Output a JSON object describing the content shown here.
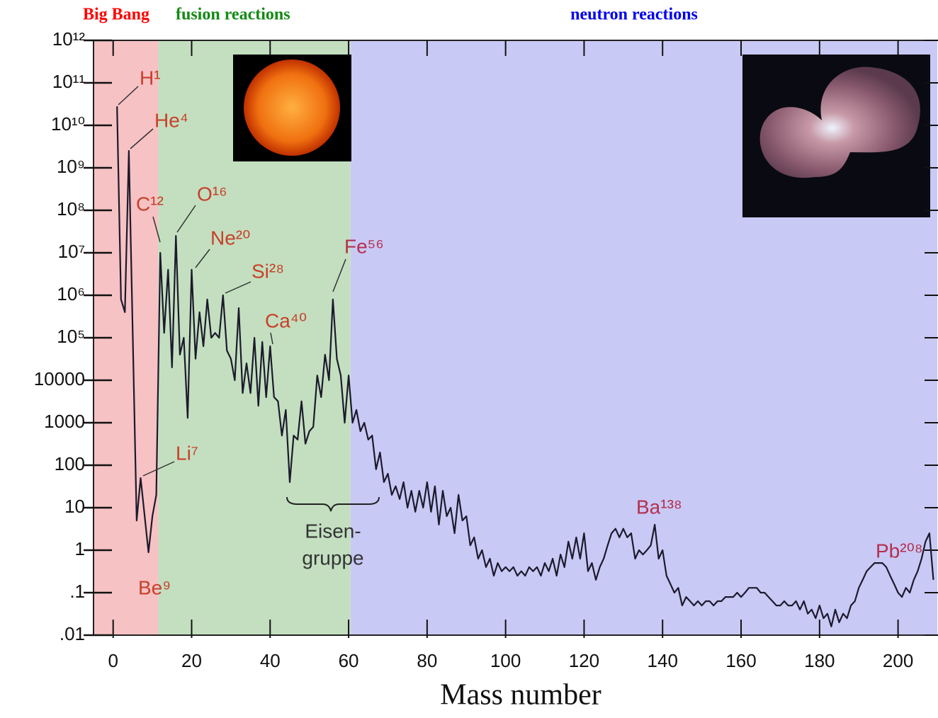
{
  "chart_data": {
    "type": "line",
    "x_label": "Mass number",
    "log_y": true,
    "xlim": [
      -5,
      210
    ],
    "ylim": [
      0.01,
      1000000000000
    ],
    "xticks": [
      0,
      20,
      40,
      60,
      80,
      100,
      120,
      140,
      160,
      180,
      200
    ],
    "yticks": [
      {
        "value": 1000000000000,
        "label": "10¹²"
      },
      {
        "value": 100000000000,
        "label": "10¹¹"
      },
      {
        "value": 10000000000,
        "label": "10¹⁰"
      },
      {
        "value": 1000000000,
        "label": "10⁹"
      },
      {
        "value": 100000000,
        "label": "10⁸"
      },
      {
        "value": 10000000,
        "label": "10⁷"
      },
      {
        "value": 1000000,
        "label": "10⁶"
      },
      {
        "value": 100000,
        "label": "10⁵"
      },
      10000,
      1000,
      100,
      10,
      1,
      {
        "value": 0.1,
        "label": ".1"
      },
      {
        "value": 0.01,
        "label": ".01"
      }
    ],
    "regions": [
      {
        "label": "Big Bang",
        "label_color": "#ff0000",
        "fill": "#f6c2c4",
        "range": [
          -5,
          11.5
        ]
      },
      {
        "label": "fusion reactions",
        "label_color": "#138a13",
        "fill": "#c3dfc0",
        "range": [
          11.5,
          60.5
        ]
      },
      {
        "label": "neutron reactions",
        "label_color": "#0000ee",
        "fill": "#c9c9f6",
        "range": [
          60.5,
          210
        ]
      }
    ],
    "annotations": [
      "H¹",
      "He⁴",
      "C¹²",
      "O¹⁶",
      "Ne²⁰",
      "Si²⁸",
      "Ca⁴⁰",
      "Fe⁵⁶",
      "Li⁷",
      "Be⁹",
      "Ba¹³⁸",
      "Pb²⁰⁸"
    ],
    "bracket_label": [
      "Eisen-",
      "gruppe"
    ],
    "color": "#1c1a2c",
    "x": [
      1,
      2,
      3,
      4,
      6,
      7,
      9,
      10,
      11,
      12,
      13,
      14,
      15,
      16,
      17,
      18,
      19,
      20,
      21,
      22,
      23,
      24,
      25,
      26,
      27,
      28,
      29,
      30,
      31,
      32,
      33,
      34,
      35,
      36,
      37,
      38,
      39,
      40,
      41,
      42,
      43,
      44,
      45,
      46,
      47,
      48,
      49,
      50,
      51,
      52,
      53,
      54,
      55,
      56,
      57,
      58,
      59,
      60,
      61,
      62,
      63,
      64,
      65,
      66,
      67,
      68,
      69,
      70,
      71,
      72,
      73,
      74,
      75,
      76,
      77,
      78,
      79,
      80,
      81,
      82,
      83,
      84,
      85,
      86,
      87,
      88,
      89,
      90,
      91,
      92,
      93,
      94,
      95,
      96,
      97,
      98,
      99,
      100,
      101,
      102,
      103,
      104,
      105,
      106,
      107,
      108,
      109,
      110,
      111,
      112,
      113,
      114,
      115,
      116,
      117,
      118,
      119,
      120,
      121,
      122,
      123,
      124,
      125,
      126,
      127,
      128,
      129,
      130,
      131,
      132,
      133,
      134,
      135,
      136,
      137,
      138,
      139,
      140,
      141,
      142,
      143,
      144,
      145,
      146,
      147,
      148,
      149,
      150,
      151,
      152,
      153,
      154,
      155,
      156,
      157,
      158,
      159,
      160,
      161,
      162,
      163,
      164,
      165,
      166,
      167,
      168,
      169,
      170,
      171,
      172,
      173,
      174,
      175,
      176,
      177,
      178,
      179,
      180,
      181,
      182,
      183,
      184,
      185,
      186,
      187,
      188,
      189,
      190,
      191,
      192,
      193,
      194,
      195,
      196,
      197,
      198,
      199,
      200,
      201,
      202,
      203,
      204,
      205,
      206,
      207,
      208,
      209
    ],
    "values": [
      28000000000,
      800000,
      400000,
      2500000000,
      5,
      50,
      0.89,
      6.3,
      20,
      10000000,
      130000,
      4000000,
      20000,
      25000000,
      40000,
      100000,
      1300,
      4000000,
      32000,
      400000,
      63000,
      800000,
      100000,
      130000,
      100000,
      1000000,
      50000,
      32000,
      10000,
      500000,
      5000,
      25000,
      5000,
      100000,
      2500,
      80000,
      4000,
      63000,
      4000,
      3200,
      500,
      2000,
      40,
      500,
      400,
      3200,
      320,
      630,
      800,
      13000,
      4000,
      40000,
      10000,
      800000,
      32000,
      13000,
      1000,
      13000,
      1000,
      2000,
      630,
      1000,
      400,
      500,
      80,
      200,
      40,
      63,
      20,
      32,
      16,
      40,
      10,
      25,
      8,
      25,
      10,
      40,
      8,
      32,
      4,
      25,
      6.3,
      10,
      2.5,
      20,
      5,
      6.3,
      1.3,
      2,
      0.63,
      1,
      0.4,
      0.63,
      0.25,
      0.5,
      0.32,
      0.4,
      0.32,
      0.4,
      0.25,
      0.32,
      0.25,
      0.4,
      0.32,
      0.4,
      0.25,
      0.5,
      0.32,
      0.63,
      0.25,
      0.79,
      0.4,
      1.6,
      0.63,
      2,
      0.63,
      2.5,
      0.32,
      0.5,
      0.2,
      0.4,
      0.63,
      1.3,
      2.5,
      3.2,
      2,
      3.2,
      2,
      2.5,
      0.63,
      1,
      0.79,
      1,
      1.3,
      4,
      0.63,
      1,
      0.25,
      0.16,
      0.1,
      0.13,
      0.05,
      0.079,
      0.063,
      0.05,
      0.063,
      0.05,
      0.063,
      0.063,
      0.05,
      0.063,
      0.063,
      0.079,
      0.079,
      0.079,
      0.1,
      0.079,
      0.1,
      0.13,
      0.13,
      0.13,
      0.1,
      0.1,
      0.079,
      0.063,
      0.05,
      0.05,
      0.063,
      0.05,
      0.05,
      0.063,
      0.04,
      0.063,
      0.032,
      0.04,
      0.025,
      0.05,
      0.025,
      0.032,
      0.016,
      0.04,
      0.02,
      0.032,
      0.025,
      0.05,
      0.063,
      0.13,
      0.2,
      0.32,
      0.4,
      0.5,
      0.5,
      0.5,
      0.4,
      0.25,
      0.16,
      0.1,
      0.079,
      0.13,
      0.1,
      0.2,
      0.32,
      0.63,
      1.6,
      2.5,
      0.2
    ]
  }
}
